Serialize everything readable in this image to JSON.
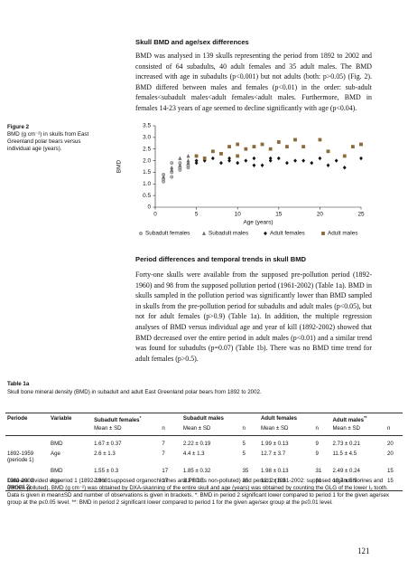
{
  "section1": {
    "heading": "Skull BMD and age/sex differences",
    "body": "BMD was analysed in 139 skulls representing the period from 1892 to 2002 and consisted of 64 subadults, 40 adult females and 35 adult males. The BMD increased with age in subadults (p<0.001) but not adults (both: p>0.05) (Fig. 2). BMD differed between males and females (p<0.01) in the order: sub-adult females<subadult males<adult females<adult males. Furthermore, BMD in females 14-23 years of age seemed to decline significantly with age (p<0.04)."
  },
  "figure": {
    "label": "Figure 2",
    "caption": "BMD (g cm⁻²) in skulls from East Greenland polar bears versus individual age (years)."
  },
  "chart_data": {
    "type": "scatter",
    "y_label": "BMD",
    "x_label": "Age (years)",
    "xlim": [
      0,
      25
    ],
    "xticks": [
      0,
      5,
      10,
      15,
      20,
      25
    ],
    "ylim": [
      0,
      3.5
    ],
    "yticks": [
      0,
      0.5,
      {
        "value": 1,
        "label": "1.0"
      },
      1.5,
      {
        "value": 2,
        "label": "2.0"
      },
      2.5,
      {
        "value": 3,
        "label": "3.0"
      },
      3.5
    ],
    "grid": false,
    "legend": "below",
    "series": [
      {
        "name": "Subadult females",
        "marker": "circle",
        "color": "#b8b8b8",
        "x": [
          1,
          1,
          1,
          2,
          2,
          2,
          3,
          3,
          3,
          4,
          4
        ],
        "values": [
          1.1,
          1.2,
          1.4,
          1.3,
          1.5,
          1.9,
          1.6,
          1.7,
          1.9,
          1.7,
          1.8
        ]
      },
      {
        "name": "Subadult males",
        "marker": "triangle",
        "color": "#6e6e6e",
        "x": [
          1,
          2,
          2,
          3,
          3,
          4,
          4,
          4
        ],
        "values": [
          1.3,
          1.6,
          1.7,
          1.8,
          2.1,
          1.9,
          2.0,
          2.2
        ]
      },
      {
        "name": "Adult females",
        "marker": "diamond",
        "color": "#111111",
        "x": [
          5,
          5,
          6,
          7,
          8,
          9,
          9,
          10,
          11,
          12,
          12,
          13,
          14,
          14,
          15,
          16,
          17,
          18,
          19,
          20,
          21,
          22,
          23,
          25
        ],
        "values": [
          1.9,
          2.0,
          2.0,
          2.1,
          1.9,
          2.0,
          2.1,
          1.9,
          2.0,
          2.1,
          1.8,
          1.8,
          2.0,
          2.1,
          2.1,
          1.9,
          2.0,
          2.0,
          1.9,
          2.1,
          1.8,
          2.0,
          1.7,
          2.1
        ]
      },
      {
        "name": "Adult males",
        "marker": "square",
        "color": "#8a6a3c",
        "x": [
          5,
          6,
          7,
          8,
          9,
          10,
          10,
          11,
          12,
          13,
          14,
          15,
          16,
          17,
          18,
          20,
          21,
          23,
          24,
          25
        ],
        "values": [
          2.2,
          2.1,
          2.4,
          2.3,
          2.6,
          2.7,
          2.2,
          2.5,
          2.6,
          2.7,
          2.5,
          2.8,
          2.6,
          2.9,
          2.6,
          2.9,
          2.4,
          2.2,
          2.6,
          2.7
        ]
      }
    ]
  },
  "section2": {
    "heading": "Period differences and temporal trends in skull BMD",
    "body": "Forty-one skulls were available from the supposed pre-pollution period (1892-1960) and 98 from the supposed pollution period (1961-2002) (Table 1a). BMD in skulls sampled in the pollution period was significantly lower than BMD sampled in skulls from the pre-pollution period for subadults and adult males (p<0.05), but not for adult females (p>0.9) (Table 1a). In addition, the multiple regression analyses of BMD versus individual age and year of kill (1892-2002) showed that BMD decreased over the entire period in adult males (p<0.01) and a similar trend was found for subadults (p=0.07) (Table 1b). There was no BMD time trend for adult females (p>0.5)."
  },
  "table": {
    "label": "Table 1a",
    "caption": "Skull bone mineral density (BMD) in subadult and adult East Greenland polar bears from 1892 to 2002.",
    "columns": [
      {
        "text": "Periode"
      },
      {
        "text": "Variable"
      },
      {
        "text": "Subadult females",
        "sup": "*"
      },
      {
        "text": "Subadult males"
      },
      {
        "text": "Adult females"
      },
      {
        "text": "Adult males",
        "sup": "**"
      }
    ],
    "stat_headers": [
      "Mean ± SD",
      "n"
    ],
    "periods": [
      {
        "label": "1892-1959 (periode 1)",
        "rows": [
          {
            "variable": "BMD",
            "cells": [
              "1.67 ± 0.37",
              "7",
              "2.22 ± 0.19",
              "5",
              "1.99 ± 0.13",
              "9",
              "2.73 ± 0.21",
              "20"
            ]
          },
          {
            "variable": "Age",
            "cells": [
              "2.6 ± 1.3",
              "7",
              "4.4 ± 1.3",
              "5",
              "12.7 ± 3.7",
              "9",
              "11.5 ± 4.5",
              "20"
            ]
          }
        ]
      },
      {
        "label": "1960-2002 (period 2)",
        "rows": [
          {
            "variable": "BMD",
            "cells": [
              "1.55 ± 0.3",
              "17",
              "1.85 ± 0.32",
              "35",
              "1.98 ± 0.13",
              "31",
              "2.49 ± 0.24",
              "15"
            ]
          },
          {
            "variable": "Age",
            "cells": [
              "2.8 ± 1",
              "17",
              "3.2 ± 1.1",
              "35",
              "12.1 ± 6.3",
              "31",
              "10.7 ± 5.5",
              "15"
            ]
          }
        ]
      }
    ],
    "footnote": "Data are divided on period 1 (1892-1960: supposed organochlorines and PBDEs non-polluted) and period 2 (1961-2002: supposed organochlorines and PBDEs polluted). BMD (g cm⁻²) was obtained by DXA-skanning of the entire skull and age (years) was obtained by counting the GLG of the lower I₂ tooth. Data is given in mean±SD and number of observations is given in brackets. *: BMD in period 2 significant lower compared to period 1 for the given age/sex group at the p≤0.05 level. **: BMD in period 2 significant lower compared to period 1 for the given age/sex group at the p≤0.01 level."
  },
  "page_number": "121"
}
